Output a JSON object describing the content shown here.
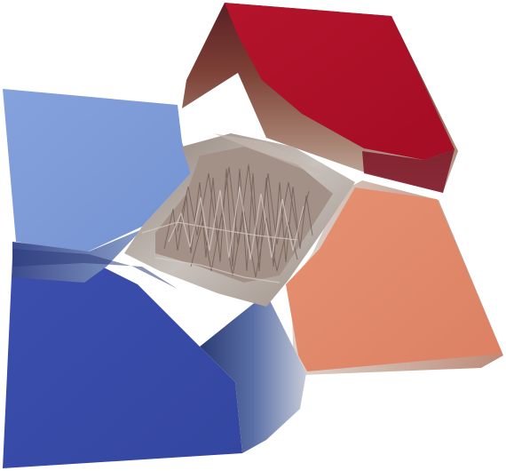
{
  "scene": {
    "background": "#ffffff",
    "colormap": "cool-to-warm",
    "colors": {
      "deep_blue": "#3a4ba6",
      "light_blue": "#7b9bd8",
      "salmon": "#e0866a",
      "crimson": "#b0122a",
      "center_gray": "#b9b4b0",
      "brown_mid": "#7d6157",
      "navy_mid": "#2c3e6b"
    },
    "regions": [
      "light-blue-plateau",
      "deep-blue-plateau",
      "crimson-plateau",
      "salmon-plateau",
      "rough-center-saddle"
    ]
  }
}
